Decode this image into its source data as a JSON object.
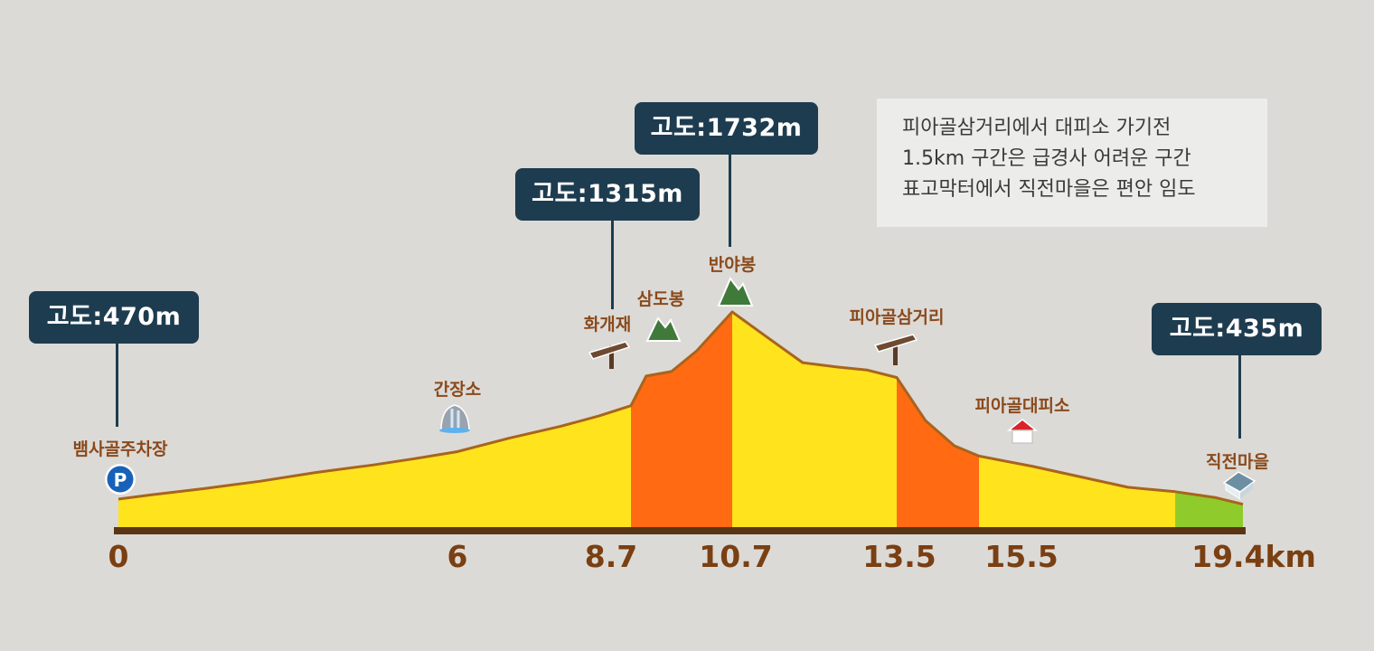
{
  "chart_data": {
    "type": "area",
    "x_unit": "km",
    "x_ticks": [
      "0",
      "6",
      "8.7",
      "10.7",
      "13.5",
      "15.5",
      "19.4km"
    ],
    "profile": [
      [
        0,
        470
      ],
      [
        0.6,
        500
      ],
      [
        1.5,
        540
      ],
      [
        2.5,
        590
      ],
      [
        3.5,
        650
      ],
      [
        4.5,
        700
      ],
      [
        5.2,
        740
      ],
      [
        6.0,
        790
      ],
      [
        6.8,
        880
      ],
      [
        7.6,
        960
      ],
      [
        8.2,
        1030
      ],
      [
        8.7,
        1100
      ],
      [
        9.0,
        1300
      ],
      [
        9.5,
        1330
      ],
      [
        10.0,
        1470
      ],
      [
        10.7,
        1732
      ],
      [
        11.3,
        1560
      ],
      [
        11.9,
        1390
      ],
      [
        12.5,
        1360
      ],
      [
        13.0,
        1340
      ],
      [
        13.5,
        1290
      ],
      [
        14.2,
        1000
      ],
      [
        14.9,
        830
      ],
      [
        15.5,
        760
      ],
      [
        16.3,
        690
      ],
      [
        17.0,
        620
      ],
      [
        17.7,
        550
      ],
      [
        18.4,
        520
      ],
      [
        19.0,
        480
      ],
      [
        19.4,
        435
      ]
    ],
    "segments": [
      {
        "from": 0,
        "to": 8.7,
        "color": "#ffe31c"
      },
      {
        "from": 8.7,
        "to": 10.7,
        "color": "#ff6a13"
      },
      {
        "from": 10.7,
        "to": 13.5,
        "color": "#ffe31c"
      },
      {
        "from": 13.5,
        "to": 15.5,
        "color": "#ff6a13"
      },
      {
        "from": 15.5,
        "to": 18.4,
        "color": "#ffe31c"
      },
      {
        "from": 18.4,
        "to": 19.4,
        "color": "#8fcb2a"
      }
    ]
  },
  "callouts": {
    "start": "고도:470m",
    "hwagaejae": "고도:1315m",
    "banyabong": "고도:1732m",
    "end": "고도:435m"
  },
  "places": {
    "baemsagol_parking": "뱀사골주차장",
    "ganjangso": "간장소",
    "hwagaejae": "화개재",
    "samdobong": "삼도봉",
    "banyabong": "반야봉",
    "piagol_junction": "피아골삼거리",
    "piagol_shelter": "피아골대피소",
    "jikjeon_village": "직전마을"
  },
  "note": {
    "lines": [
      "피아골삼거리에서 대피소 가기전",
      "1.5km 구간은 급경사 어려운 구간",
      "표고막터에서 직전마을은 편안 임도"
    ]
  },
  "icons": {
    "parking": "P"
  },
  "colors": {
    "callout_bg": "#1e3c4f",
    "label_brown": "#8a4a1c",
    "outline": "#a8641e",
    "base": "#5a3614"
  }
}
